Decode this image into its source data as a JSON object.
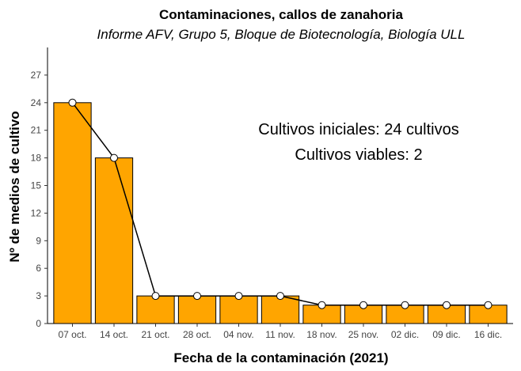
{
  "chart_data": {
    "type": "bar",
    "title": "Contaminaciones, callos de zanahoria",
    "subtitle": "Informe AFV, Grupo 5, Bloque de Biotecnología, Biología ULL",
    "xlabel": "Fecha de la contaminación (2021)",
    "ylabel": "Nº de medios de cultivo",
    "categories": [
      "07 oct.",
      "14 oct.",
      "21 oct.",
      "28 oct.",
      "04 nov.",
      "11 nov.",
      "18 nov.",
      "25 nov.",
      "02 dic.",
      "09 dic.",
      "16 dic."
    ],
    "values": [
      24,
      18,
      3,
      3,
      3,
      3,
      2,
      2,
      2,
      2,
      2
    ],
    "line_overlay": true,
    "ylim": [
      0,
      30
    ],
    "yticks": [
      0,
      3,
      6,
      9,
      12,
      15,
      18,
      21,
      24,
      27
    ],
    "grid": false,
    "annotations": [
      "Cultivos iniciales: 24 cultivos",
      "Cultivos viables: 2"
    ],
    "colors": {
      "bar": "#FFA500",
      "bar_outline": "#000000",
      "line": "#000000",
      "point_fill": "#FFFFFF"
    }
  }
}
